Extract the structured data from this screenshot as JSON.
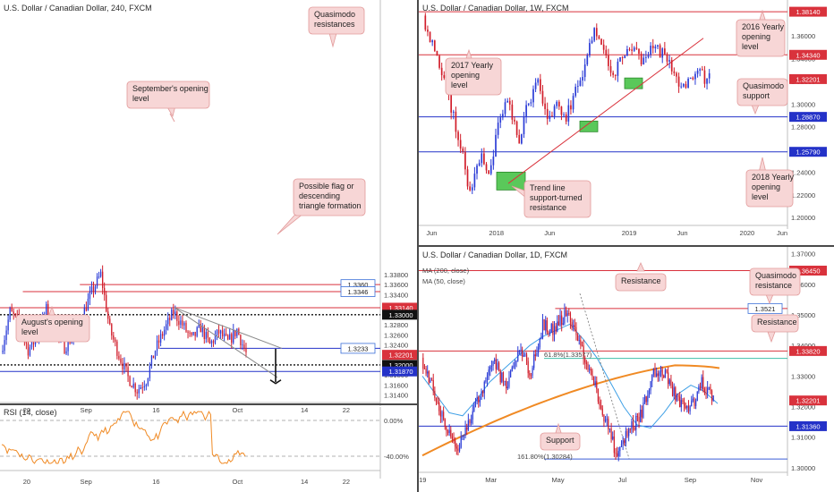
{
  "colors": {
    "up": "#2a3bd6",
    "down": "#d11d2a",
    "red_line": "#d9323c",
    "blue_line": "#2432c8",
    "callout_bg": "#f7d6d6",
    "callout_border": "#e29a9a",
    "green_zone": "#5ac85a",
    "ma200": "#f08a24",
    "ma50": "#3fa0e6",
    "rsi": "#f08a24"
  },
  "chart_data": [
    {
      "id": "h4",
      "type": "candlestick",
      "title": "U.S. Dollar / Canadian Dollar, 240, FXCM",
      "ylim": [
        1.3125,
        1.3895
      ],
      "yticks": [
        1.314,
        1.316,
        1.318,
        1.32,
        1.322,
        1.324,
        1.326,
        1.328,
        1.33,
        1.332,
        1.334,
        1.336,
        1.338
      ],
      "ytick_labels": [
        "1.31400",
        "1.31600",
        "1.31800",
        "1.32000",
        "1.32200",
        "1.32400",
        "1.32600",
        "1.32800",
        "1.33000",
        "1.33200",
        "1.33400",
        "1.33600",
        "1.33800"
      ],
      "xticks": [
        {
          "label": "20",
          "pos": 0.07
        },
        {
          "label": "Sep",
          "pos": 0.22
        },
        {
          "label": "16",
          "pos": 0.41
        },
        {
          "label": "Oct",
          "pos": 0.62
        },
        {
          "label": "14",
          "pos": 0.8
        },
        {
          "label": "22",
          "pos": 0.91
        }
      ],
      "price_labels": [
        {
          "text": "1.3360",
          "value": 1.336,
          "style": "box-blue"
        },
        {
          "text": "1.3346",
          "value": 1.3346,
          "style": "box-blue"
        },
        {
          "text": "1.33140",
          "value": 1.3314,
          "style": "fill-red"
        },
        {
          "text": "1.33000",
          "value": 1.33,
          "style": "fill-black"
        },
        {
          "text": "1.3233",
          "value": 1.3233,
          "style": "box-blue"
        },
        {
          "text": "1.32201",
          "value": 1.32201,
          "style": "fill-red"
        },
        {
          "text": "1.32000",
          "value": 1.32,
          "style": "fill-black"
        },
        {
          "text": "1.31870",
          "value": 1.3187,
          "style": "fill-blue"
        }
      ],
      "levels": [
        {
          "value": 1.336,
          "from": 0.21,
          "color": "red"
        },
        {
          "value": 1.3346,
          "from": 0.06,
          "color": "red"
        },
        {
          "value": 1.3314,
          "from": 0.0,
          "color": "red"
        },
        {
          "value": 1.33,
          "from": 0.0,
          "color": "black-dotted"
        },
        {
          "value": 1.3233,
          "from": 0.42,
          "color": "blue"
        },
        {
          "value": 1.32,
          "from": 0.0,
          "color": "black-dotted"
        },
        {
          "value": 1.3187,
          "from": 0.0,
          "color": "blue"
        }
      ],
      "annotations": [
        {
          "lines": [
            "Quasimodo",
            "resistances"
          ]
        },
        {
          "lines": [
            "September's opening",
            "level"
          ]
        },
        {
          "lines": [
            "Possible flag or",
            "descending",
            "triangle formation"
          ]
        },
        {
          "lines": [
            "August's opening",
            "level"
          ]
        }
      ],
      "rsi": {
        "title": "RSI (14, close)",
        "ylim": [
          -55,
          15
        ],
        "yticks": [
          0,
          -40
        ],
        "ytick_labels": [
          "0.00%",
          "-40.00%"
        ]
      }
    },
    {
      "id": "w1",
      "type": "candlestick",
      "title": "U.S. Dollar / Canadian Dollar, 1W, FXCM",
      "ylim": [
        1.193,
        1.387
      ],
      "yticks": [
        1.2,
        1.22,
        1.24,
        1.26,
        1.28,
        1.3,
        1.32,
        1.34,
        1.36
      ],
      "ytick_labels": [
        "1.20000",
        "1.22000",
        "1.24000",
        "1.26000",
        "1.28000",
        "1.30000",
        "1.32000",
        "1.34000",
        "1.36000"
      ],
      "xticks": [
        {
          "label": "Jun",
          "pos": 0.03
        },
        {
          "label": "2018",
          "pos": 0.2
        },
        {
          "label": "Jun",
          "pos": 0.35
        },
        {
          "label": "2019",
          "pos": 0.56
        },
        {
          "label": "Jun",
          "pos": 0.71
        },
        {
          "label": "2020",
          "pos": 0.88
        },
        {
          "label": "Jun",
          "pos": 1.01
        }
      ],
      "price_labels": [
        {
          "text": "1.38140",
          "value": 1.3814,
          "style": "fill-red"
        },
        {
          "text": "1.34340",
          "value": 1.3434,
          "style": "fill-red"
        },
        {
          "text": "1.32201",
          "value": 1.32201,
          "style": "fill-red"
        },
        {
          "text": "1.28870",
          "value": 1.2887,
          "style": "fill-blue"
        },
        {
          "text": "1.25790",
          "value": 1.2579,
          "style": "fill-blue"
        }
      ],
      "levels": [
        {
          "value": 1.3814,
          "from": 0.0,
          "color": "red"
        },
        {
          "value": 1.3434,
          "from": 0.0,
          "color": "red"
        },
        {
          "value": 1.2887,
          "from": 0.0,
          "color": "blue"
        },
        {
          "value": 1.2579,
          "from": 0.0,
          "color": "blue"
        }
      ],
      "annotations": [
        {
          "lines": [
            "2016 Yearly",
            "opening",
            "level"
          ]
        },
        {
          "lines": [
            "2017 Yearly",
            "opening",
            "level"
          ]
        },
        {
          "lines": [
            "Quasimodo",
            "support"
          ]
        },
        {
          "lines": [
            "2018 Yearly",
            "opening",
            "level"
          ]
        },
        {
          "lines": [
            "Trend line",
            "support-turned",
            "resistance"
          ]
        }
      ]
    },
    {
      "id": "d1",
      "type": "candlestick",
      "title": "U.S. Dollar / Canadian Dollar, 1D, FXCM",
      "ylim": [
        1.2985,
        1.3705
      ],
      "yticks": [
        1.3,
        1.31,
        1.32,
        1.33,
        1.34,
        1.35,
        1.36,
        1.37
      ],
      "ytick_labels": [
        "1.30000",
        "1.31000",
        "1.32000",
        "1.33000",
        "1.34000",
        "1.35000",
        "1.36000",
        "1.37000"
      ],
      "xticks": [
        {
          "label": "19",
          "pos": 0.01
        },
        {
          "label": "Mar",
          "pos": 0.19
        },
        {
          "label": "May",
          "pos": 0.37
        },
        {
          "label": "Jul",
          "pos": 0.55
        },
        {
          "label": "Sep",
          "pos": 0.73
        },
        {
          "label": "Nov",
          "pos": 0.91
        }
      ],
      "price_labels": [
        {
          "text": "1.36450",
          "value": 1.3645,
          "style": "fill-red"
        },
        {
          "text": "1.3521",
          "value": 1.3521,
          "style": "box-blue"
        },
        {
          "text": "1.33820",
          "value": 1.3382,
          "style": "fill-red"
        },
        {
          "text": "1.32201",
          "value": 1.32201,
          "style": "fill-red"
        },
        {
          "text": "1.31360",
          "value": 1.3136,
          "style": "fill-blue"
        }
      ],
      "levels": [
        {
          "value": 1.3645,
          "from": 0.0,
          "color": "red"
        },
        {
          "value": 1.3521,
          "from": 0.37,
          "color": "red"
        },
        {
          "value": 1.3382,
          "from": 0.0,
          "color": "red"
        },
        {
          "value": 1.3136,
          "from": 0.0,
          "color": "blue"
        }
      ],
      "fib_labels": [
        "61.8%(1.33577)",
        "161.80%(1.30284)"
      ],
      "legend": [
        "MA (200, close)",
        "MA (50, close)"
      ],
      "annotations": [
        {
          "lines": [
            "Resistance"
          ]
        },
        {
          "lines": [
            "Quasimodo",
            "resistance"
          ]
        },
        {
          "lines": [
            "Resistance"
          ]
        },
        {
          "lines": [
            "Support"
          ]
        }
      ]
    }
  ]
}
